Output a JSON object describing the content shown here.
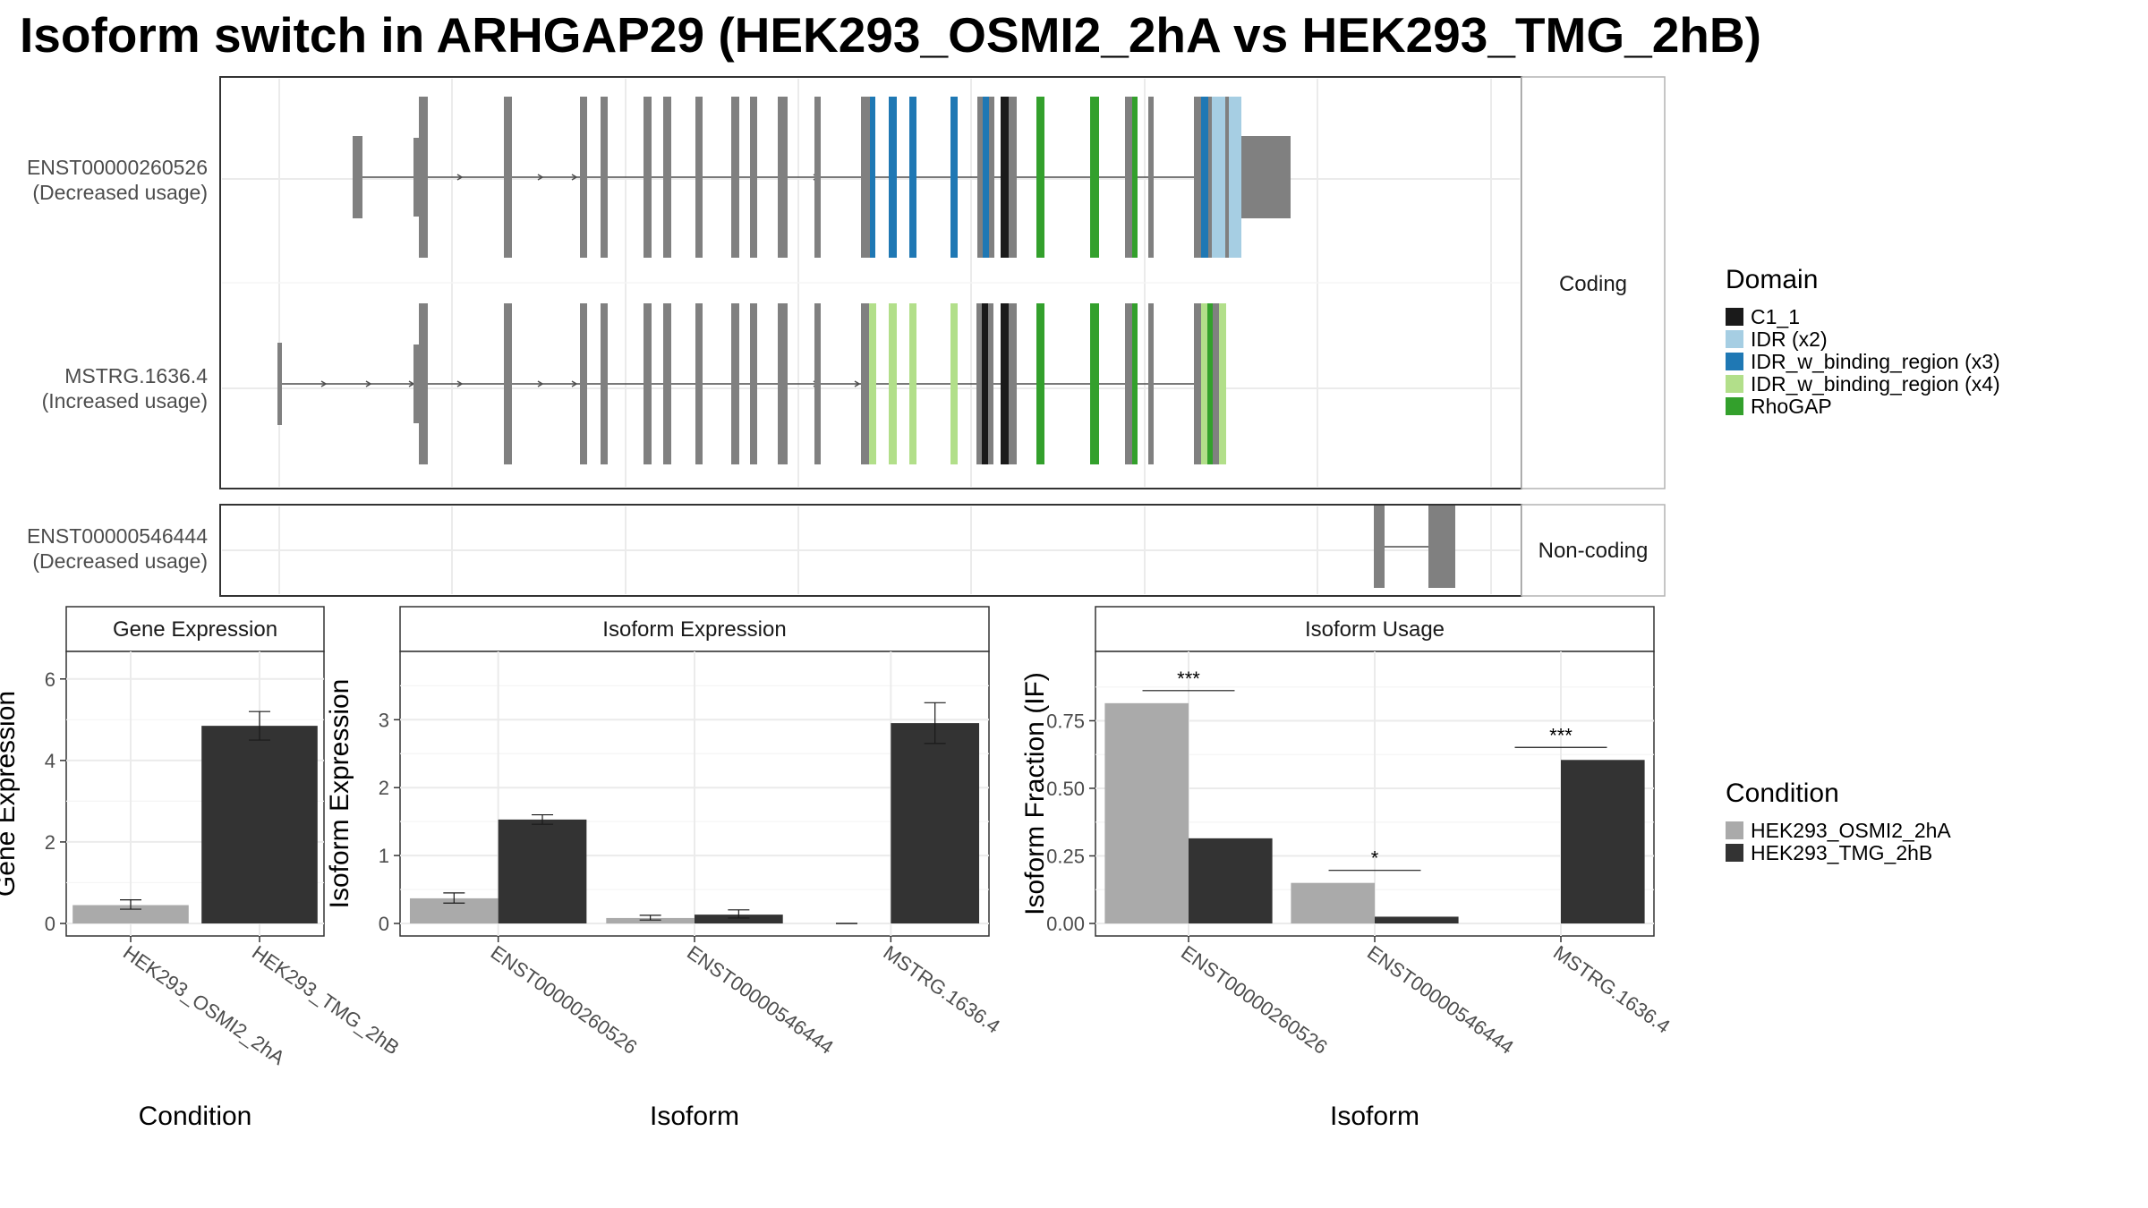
{
  "title": "Isoform switch in ARHGAP29 (HEK293_OSMI2_2hA vs HEK293_TMG_2hB)",
  "colors": {
    "exon": "#808080",
    "C1_1": "#1a1a1a",
    "IDR": "#a6cee3",
    "IDR_w_binding_region_x3": "#1f78b4",
    "IDR_w_binding_region_x4": "#b2df8a",
    "RhoGAP": "#33a02c",
    "cond1": "#aaaaaa",
    "cond2": "#333333"
  },
  "structure": {
    "facets": [
      "Coding",
      "Non-coding"
    ],
    "transcripts": [
      {
        "id": "ENST00000260526",
        "usage": "(Decreased usage)",
        "facet": "Coding"
      },
      {
        "id": "MSTRG.1636.4",
        "usage": "(Increased usage)",
        "facet": "Coding"
      },
      {
        "id": "ENST00000546444",
        "usage": "(Decreased usage)",
        "facet": "Non-coding"
      }
    ]
  },
  "legend": {
    "domain_title": "Domain",
    "domain_items": [
      {
        "label": "C1_1",
        "color": "#1a1a1a"
      },
      {
        "label": "IDR (x2)",
        "color": "#a6cee3"
      },
      {
        "label": "IDR_w_binding_region (x3)",
        "color": "#1f78b4"
      },
      {
        "label": "IDR_w_binding_region (x4)",
        "color": "#b2df8a"
      },
      {
        "label": "RhoGAP",
        "color": "#33a02c"
      }
    ],
    "condition_title": "Condition",
    "condition_items": [
      {
        "label": "HEK293_OSMI2_2hA",
        "color": "#aaaaaa"
      },
      {
        "label": "HEK293_TMG_2hB",
        "color": "#333333"
      }
    ]
  },
  "chart_data": [
    {
      "type": "bar",
      "title": "Gene Expression",
      "xlabel": "Condition",
      "ylabel": "Gene Expression",
      "ylim": [
        0,
        6.5
      ],
      "yticks": [
        0,
        2,
        4,
        6
      ],
      "categories": [
        "HEK293_OSMI2_2hA",
        "HEK293_TMG_2hB"
      ],
      "values": [
        0.45,
        4.85
      ],
      "errors": [
        [
          0.35,
          0.58
        ],
        [
          4.5,
          5.2
        ]
      ]
    },
    {
      "type": "bar",
      "title": "Isoform Expression",
      "xlabel": "Isoform",
      "ylabel": "Isoform Expression",
      "ylim": [
        0,
        3.9
      ],
      "yticks": [
        0,
        1,
        2,
        3
      ],
      "categories": [
        "ENST00000260526",
        "ENST00000546444",
        "MSTRG.1636.4"
      ],
      "series": [
        {
          "name": "HEK293_OSMI2_2hA",
          "values": [
            0.37,
            0.08,
            0.0
          ],
          "errors": [
            [
              0.3,
              0.45
            ],
            [
              0.05,
              0.12
            ],
            [
              0.0,
              0.0
            ]
          ]
        },
        {
          "name": "HEK293_TMG_2hB",
          "values": [
            1.53,
            0.13,
            2.95
          ],
          "errors": [
            [
              1.46,
              1.6
            ],
            [
              0.08,
              0.2
            ],
            [
              2.65,
              3.25
            ]
          ]
        }
      ]
    },
    {
      "type": "bar",
      "title": "Isoform Usage",
      "xlabel": "Isoform",
      "ylabel": "Isoform Fraction (IF)",
      "ylim": [
        0,
        0.98
      ],
      "yticks": [
        0.0,
        0.25,
        0.5,
        0.75
      ],
      "ytick_labels": [
        "0.00",
        "0.25",
        "0.50",
        "0.75"
      ],
      "categories": [
        "ENST00000260526",
        "ENST00000546444",
        "MSTRG.1636.4"
      ],
      "series": [
        {
          "name": "HEK293_OSMI2_2hA",
          "values": [
            0.815,
            0.15,
            0.0
          ]
        },
        {
          "name": "HEK293_TMG_2hB",
          "values": [
            0.315,
            0.025,
            0.605
          ]
        }
      ],
      "significance": [
        "***",
        "*",
        "***"
      ]
    }
  ]
}
